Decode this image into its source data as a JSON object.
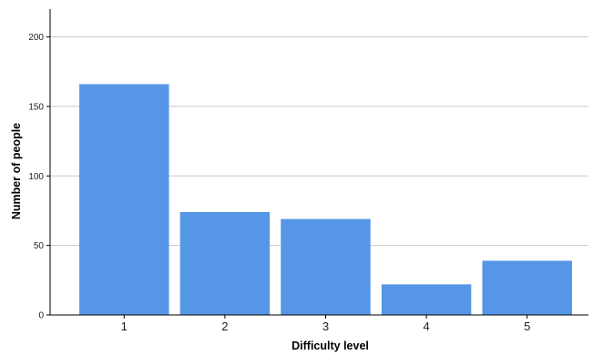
{
  "chart_data": {
    "type": "bar",
    "title": "",
    "xlabel": "Difficulty level",
    "ylabel": "Number of people",
    "categories": [
      "1",
      "2",
      "3",
      "4",
      "5"
    ],
    "values": [
      166,
      74,
      69,
      22,
      39
    ],
    "ylim": [
      0,
      220
    ],
    "yticks": [
      0,
      50,
      100,
      150,
      200
    ],
    "grid": true,
    "legend": "none",
    "colors": {
      "bar": "#5596e6",
      "gridline": "#c8c8c8",
      "axis": "#000000"
    }
  }
}
